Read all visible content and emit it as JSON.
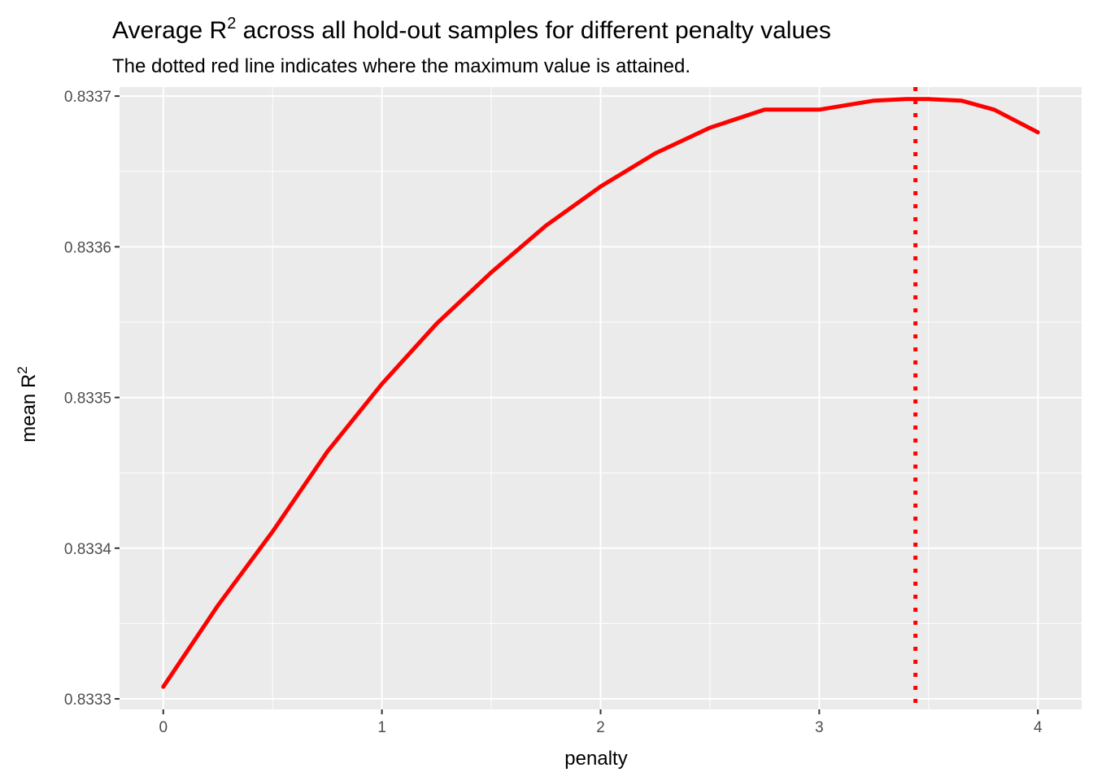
{
  "chart_data": {
    "type": "line",
    "title": "Average R² across all hold-out samples for different penalty values",
    "subtitle": "The dotted red line indicates where the maximum value is attained.",
    "title_parts": {
      "before": "Average R",
      "sup": "2",
      "after": " across all hold-out samples for different penalty values"
    },
    "xlabel": "penalty",
    "ylabel_parts": {
      "before": "mean R",
      "sup": "2"
    },
    "xlim": [
      -0.2,
      4.2
    ],
    "ylim": [
      0.833293,
      0.833706
    ],
    "x_ticks": [
      0,
      1,
      2,
      3,
      4
    ],
    "x_tick_labels": [
      "0",
      "1",
      "2",
      "3",
      "4"
    ],
    "y_ticks": [
      0.8333,
      0.8334,
      0.8335,
      0.8336,
      0.8337
    ],
    "y_tick_labels": [
      "0.8333",
      "0.8334",
      "0.8335",
      "0.8336",
      "0.8337"
    ],
    "grid": true,
    "legend": "none",
    "colors": {
      "line": "#ff0000",
      "vline": "#ff0000",
      "panel": "#ebebeb",
      "grid": "#ffffff"
    },
    "series": [
      {
        "x": [
          0,
          0.25,
          0.5,
          0.75,
          1.0,
          1.25,
          1.5,
          1.75,
          2.0,
          2.25,
          2.5,
          2.75,
          3.0,
          3.25,
          3.4,
          3.5,
          3.65,
          3.8,
          4.0
        ],
        "y": [
          0.833308,
          0.833362,
          0.833411,
          0.833464,
          0.833509,
          0.833549,
          0.833583,
          0.833614,
          0.83364,
          0.833662,
          0.833679,
          0.833691,
          0.833691,
          0.833697,
          0.833698,
          0.833698,
          0.833697,
          0.833691,
          0.833676
        ]
      }
    ],
    "vline": {
      "x": 3.44,
      "style": "dotted"
    }
  }
}
